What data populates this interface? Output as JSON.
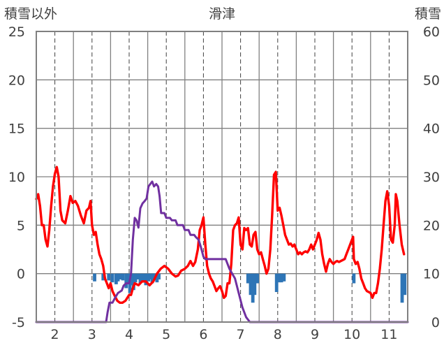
{
  "chart_data": {
    "type": "line",
    "title": "滑津",
    "left_axis_label": "積雪以外",
    "right_axis_label": "積雪",
    "y_left": {
      "min": -5,
      "max": 25,
      "ticks": [
        -5,
        0,
        5,
        10,
        15,
        20,
        25
      ]
    },
    "y_right": {
      "min": 0,
      "max": 60,
      "ticks": [
        0,
        10,
        20,
        30,
        40,
        50,
        60
      ]
    },
    "x_range": [
      1.5,
      11.5
    ],
    "x_ticks": [
      2,
      3,
      4,
      5,
      6,
      7,
      8,
      9,
      10,
      11
    ],
    "x_tick_labels": [
      "2",
      "3",
      "4",
      "5",
      "6",
      "7",
      "8",
      "9",
      "10",
      "11"
    ],
    "solid_gridlines": [
      1.5,
      2.5,
      3.5,
      4.5,
      5.5,
      6.5,
      7.5,
      8.5,
      9.5,
      10.5
    ],
    "dashed_gridlines": [
      2,
      3,
      4,
      5,
      6,
      7,
      8,
      9,
      10,
      11
    ],
    "colors": {
      "temperature": "#ff0000",
      "snow_depth": "#7030a0",
      "precipitation": "#2e75b6",
      "grid": "#808080",
      "axis_text": "#404040"
    },
    "series": [
      {
        "kind": "line",
        "axis": "left",
        "color": "#ff0000",
        "points": [
          [
            1.5,
            7.7
          ],
          [
            1.55,
            8.2
          ],
          [
            1.6,
            7.0
          ],
          [
            1.65,
            5.0
          ],
          [
            1.7,
            5.0
          ],
          [
            1.75,
            3.5
          ],
          [
            1.8,
            2.8
          ],
          [
            1.85,
            4.5
          ],
          [
            1.9,
            7.0
          ],
          [
            1.95,
            9.0
          ],
          [
            2.0,
            10.3
          ],
          [
            2.05,
            11.0
          ],
          [
            2.1,
            10.0
          ],
          [
            2.15,
            6.5
          ],
          [
            2.2,
            5.5
          ],
          [
            2.28,
            5.2
          ],
          [
            2.35,
            6.5
          ],
          [
            2.42,
            8.0
          ],
          [
            2.48,
            7.3
          ],
          [
            2.55,
            7.5
          ],
          [
            2.62,
            7.0
          ],
          [
            2.7,
            6.0
          ],
          [
            2.78,
            5.2
          ],
          [
            2.85,
            6.5
          ],
          [
            2.92,
            6.8
          ],
          [
            2.96,
            7.5
          ],
          [
            3.0,
            5.0
          ],
          [
            3.05,
            4.0
          ],
          [
            3.1,
            4.3
          ],
          [
            3.15,
            3.0
          ],
          [
            3.2,
            2.0
          ],
          [
            3.25,
            1.5
          ],
          [
            3.3,
            0.8
          ],
          [
            3.35,
            -0.5
          ],
          [
            3.4,
            -1.0
          ],
          [
            3.45,
            -1.5
          ],
          [
            3.5,
            -1.0
          ],
          [
            3.55,
            -1.8
          ],
          [
            3.6,
            -2.2
          ],
          [
            3.68,
            -2.8
          ],
          [
            3.75,
            -3.0
          ],
          [
            3.82,
            -3.0
          ],
          [
            3.9,
            -2.8
          ],
          [
            4.0,
            -2.2
          ],
          [
            4.05,
            -2.2
          ],
          [
            4.1,
            -1.5
          ],
          [
            4.15,
            -1.0
          ],
          [
            4.25,
            -1.2
          ],
          [
            4.35,
            -0.8
          ],
          [
            4.45,
            -0.8
          ],
          [
            4.55,
            -1.2
          ],
          [
            4.65,
            -0.8
          ],
          [
            4.75,
            0.0
          ],
          [
            4.85,
            0.5
          ],
          [
            4.95,
            0.8
          ],
          [
            5.05,
            0.5
          ],
          [
            5.15,
            0.0
          ],
          [
            5.25,
            -0.3
          ],
          [
            5.32,
            -0.2
          ],
          [
            5.4,
            0.3
          ],
          [
            5.5,
            0.5
          ],
          [
            5.58,
            0.8
          ],
          [
            5.65,
            1.3
          ],
          [
            5.72,
            0.8
          ],
          [
            5.78,
            1.2
          ],
          [
            5.85,
            2.5
          ],
          [
            5.9,
            4.5
          ],
          [
            5.95,
            5.0
          ],
          [
            6.0,
            5.8
          ],
          [
            6.05,
            3.0
          ],
          [
            6.1,
            0.8
          ],
          [
            6.15,
            0.0
          ],
          [
            6.2,
            -0.5
          ],
          [
            6.25,
            -0.8
          ],
          [
            6.3,
            -1.3
          ],
          [
            6.35,
            -1.8
          ],
          [
            6.4,
            -1.5
          ],
          [
            6.45,
            -1.3
          ],
          [
            6.5,
            -1.8
          ],
          [
            6.55,
            -2.5
          ],
          [
            6.6,
            -2.3
          ],
          [
            6.65,
            -1.0
          ],
          [
            6.7,
            -1.0
          ],
          [
            6.75,
            1.0
          ],
          [
            6.8,
            4.5
          ],
          [
            6.85,
            5.0
          ],
          [
            6.9,
            5.2
          ],
          [
            6.95,
            5.8
          ],
          [
            7.0,
            3.0
          ],
          [
            7.05,
            2.5
          ],
          [
            7.1,
            4.7
          ],
          [
            7.15,
            4.5
          ],
          [
            7.2,
            4.7
          ],
          [
            7.25,
            3.0
          ],
          [
            7.3,
            2.8
          ],
          [
            7.35,
            4.0
          ],
          [
            7.4,
            4.3
          ],
          [
            7.45,
            2.5
          ],
          [
            7.5,
            2.0
          ],
          [
            7.55,
            2.2
          ],
          [
            7.6,
            1.5
          ],
          [
            7.65,
            0.8
          ],
          [
            7.7,
            0.0
          ],
          [
            7.75,
            0.5
          ],
          [
            7.8,
            2.5
          ],
          [
            7.85,
            6.0
          ],
          [
            7.9,
            10.2
          ],
          [
            7.95,
            10.5
          ],
          [
            8.0,
            6.5
          ],
          [
            8.05,
            6.8
          ],
          [
            8.1,
            6.0
          ],
          [
            8.15,
            5.0
          ],
          [
            8.2,
            4.0
          ],
          [
            8.25,
            3.5
          ],
          [
            8.3,
            3.0
          ],
          [
            8.35,
            3.1
          ],
          [
            8.4,
            2.8
          ],
          [
            8.45,
            3.0
          ],
          [
            8.5,
            2.5
          ],
          [
            8.55,
            2.0
          ],
          [
            8.6,
            2.2
          ],
          [
            8.65,
            2.0
          ],
          [
            8.7,
            2.2
          ],
          [
            8.75,
            2.3
          ],
          [
            8.8,
            2.2
          ],
          [
            8.85,
            2.5
          ],
          [
            8.9,
            3.0
          ],
          [
            8.95,
            2.5
          ],
          [
            9.0,
            3.0
          ],
          [
            9.05,
            3.5
          ],
          [
            9.1,
            4.2
          ],
          [
            9.15,
            3.5
          ],
          [
            9.2,
            2.0
          ],
          [
            9.25,
            1.0
          ],
          [
            9.3,
            0.2
          ],
          [
            9.35,
            1.0
          ],
          [
            9.4,
            1.5
          ],
          [
            9.45,
            1.2
          ],
          [
            9.5,
            1.0
          ],
          [
            9.55,
            1.2
          ],
          [
            9.6,
            1.3
          ],
          [
            9.65,
            1.2
          ],
          [
            9.7,
            1.3
          ],
          [
            9.75,
            1.4
          ],
          [
            9.8,
            1.5
          ],
          [
            9.85,
            2.0
          ],
          [
            9.9,
            2.5
          ],
          [
            9.95,
            3.0
          ],
          [
            10.0,
            3.5
          ],
          [
            10.03,
            3.8
          ],
          [
            10.05,
            1.5
          ],
          [
            10.1,
            1.0
          ],
          [
            10.15,
            1.2
          ],
          [
            10.2,
            0.5
          ],
          [
            10.25,
            -0.5
          ],
          [
            10.3,
            -1.0
          ],
          [
            10.35,
            -1.5
          ],
          [
            10.4,
            -1.8
          ],
          [
            10.5,
            -2.0
          ],
          [
            10.55,
            -2.5
          ],
          [
            10.6,
            -2.0
          ],
          [
            10.65,
            -2.0
          ],
          [
            10.7,
            -1.0
          ],
          [
            10.75,
            0.5
          ],
          [
            10.8,
            2.5
          ],
          [
            10.85,
            5.0
          ],
          [
            10.9,
            7.5
          ],
          [
            10.95,
            8.5
          ],
          [
            11.0,
            7.0
          ],
          [
            11.05,
            3.5
          ],
          [
            11.1,
            3.2
          ],
          [
            11.15,
            5.0
          ],
          [
            11.18,
            8.2
          ],
          [
            11.22,
            7.5
          ],
          [
            11.28,
            5.0
          ],
          [
            11.34,
            3.0
          ],
          [
            11.4,
            2.0
          ]
        ]
      },
      {
        "kind": "line",
        "axis": "right",
        "color": "#7030a0",
        "points": [
          [
            1.5,
            0
          ],
          [
            3.38,
            0
          ],
          [
            3.42,
            2
          ],
          [
            3.47,
            4
          ],
          [
            3.55,
            4
          ],
          [
            3.62,
            5
          ],
          [
            3.7,
            6
          ],
          [
            3.8,
            6.5
          ],
          [
            3.85,
            7.5
          ],
          [
            3.92,
            8
          ],
          [
            4.0,
            8
          ],
          [
            4.05,
            10
          ],
          [
            4.1,
            17
          ],
          [
            4.15,
            21.5
          ],
          [
            4.2,
            21
          ],
          [
            4.25,
            19.5
          ],
          [
            4.3,
            23.5
          ],
          [
            4.36,
            24.5
          ],
          [
            4.42,
            25
          ],
          [
            4.47,
            25.5
          ],
          [
            4.52,
            28
          ],
          [
            4.57,
            28.5
          ],
          [
            4.62,
            29
          ],
          [
            4.67,
            28
          ],
          [
            4.73,
            28.5
          ],
          [
            4.78,
            28
          ],
          [
            4.82,
            26
          ],
          [
            4.86,
            22.5
          ],
          [
            4.95,
            22.5
          ],
          [
            5.0,
            21.5
          ],
          [
            5.1,
            21.5
          ],
          [
            5.15,
            21
          ],
          [
            5.25,
            21
          ],
          [
            5.3,
            20
          ],
          [
            5.45,
            20
          ],
          [
            5.5,
            19
          ],
          [
            5.6,
            19
          ],
          [
            5.65,
            18
          ],
          [
            5.75,
            18
          ],
          [
            5.8,
            17.5
          ],
          [
            5.87,
            17
          ],
          [
            5.93,
            15.5
          ],
          [
            6.0,
            13.5
          ],
          [
            6.05,
            13
          ],
          [
            6.6,
            13
          ],
          [
            6.7,
            11
          ],
          [
            6.85,
            9
          ],
          [
            6.95,
            6
          ],
          [
            7.05,
            3
          ],
          [
            7.15,
            1
          ],
          [
            7.25,
            0
          ],
          [
            11.5,
            0
          ]
        ]
      },
      {
        "kind": "bars",
        "axis": "left",
        "color": "#2e75b6",
        "baseline": 0,
        "values": [
          [
            3.07,
            -0.8
          ],
          [
            3.3,
            -0.7
          ],
          [
            3.45,
            -0.7
          ],
          [
            3.55,
            -0.9
          ],
          [
            3.65,
            -1.1
          ],
          [
            3.7,
            -0.8
          ],
          [
            3.77,
            -0.6
          ],
          [
            3.83,
            -0.7
          ],
          [
            3.92,
            -1.5
          ],
          [
            3.97,
            -1.0
          ],
          [
            4.02,
            -2.0
          ],
          [
            4.07,
            -1.2
          ],
          [
            4.12,
            -1.7
          ],
          [
            4.17,
            -0.9
          ],
          [
            4.22,
            -0.6
          ],
          [
            4.3,
            -1.0
          ],
          [
            4.37,
            -0.9
          ],
          [
            4.45,
            -1.2
          ],
          [
            4.52,
            -0.8
          ],
          [
            4.57,
            -0.6
          ],
          [
            4.62,
            -1.0
          ],
          [
            4.67,
            -0.7
          ],
          [
            4.75,
            -0.9
          ],
          [
            4.8,
            -0.6
          ],
          [
            7.2,
            -1.0
          ],
          [
            7.27,
            -2.2
          ],
          [
            7.33,
            -3.0
          ],
          [
            7.38,
            -2.2
          ],
          [
            7.45,
            -1.0
          ],
          [
            7.97,
            -1.9
          ],
          [
            8.03,
            -0.9
          ],
          [
            8.1,
            -0.9
          ],
          [
            8.17,
            -0.8
          ],
          [
            10.05,
            -1.0
          ],
          [
            11.35,
            -3.0
          ],
          [
            11.42,
            -2.2
          ]
        ]
      }
    ]
  }
}
